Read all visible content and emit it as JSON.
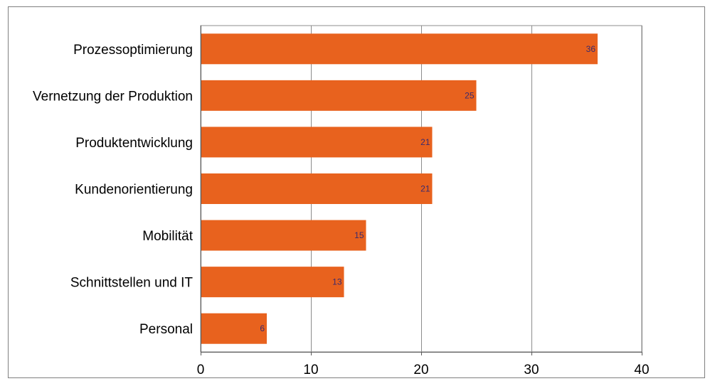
{
  "chart_data": {
    "type": "bar",
    "orientation": "horizontal",
    "categories": [
      "Prozessoptimierung",
      "Vernetzung der Produktion",
      "Produktentwicklung",
      "Kundenorientierung",
      "Mobilität",
      "Schnittstellen und IT",
      "Personal"
    ],
    "values": [
      36,
      25,
      21,
      21,
      15,
      13,
      6
    ],
    "value_labels": [
      "36",
      "25",
      "21",
      "21",
      "15",
      "13",
      "6"
    ],
    "xlim": [
      0,
      40
    ],
    "x_ticks": [
      0,
      10,
      20,
      30,
      40
    ],
    "x_tick_labels": [
      "0",
      "10",
      "20",
      "30",
      "40"
    ],
    "grid": "vertical",
    "legend": "none",
    "colors": {
      "bar": "#e8621e",
      "grid": "#8c8c8c",
      "axis": "#595959",
      "value_label": "#3a2a6e"
    }
  }
}
